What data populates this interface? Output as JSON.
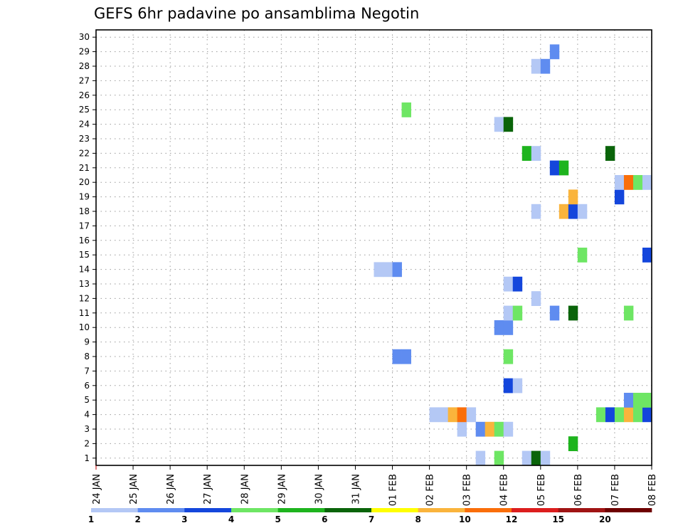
{
  "chart_data": {
    "type": "heatmap",
    "title": "GEFS 6hr padavine po ansamblima Negotin",
    "x_ticks": [
      "24 JAN",
      "25 JAN",
      "26 JAN",
      "27 JAN",
      "28 JAN",
      "29 JAN",
      "30 JAN",
      "31 JAN",
      "01 FEB",
      "02 FEB",
      "03 FEB",
      "04 FEB",
      "05 FEB",
      "06 FEB",
      "07 FEB",
      "08 FEB"
    ],
    "y_ticks": [
      "1",
      "2",
      "3",
      "4",
      "5",
      "6",
      "7",
      "8",
      "9",
      "10",
      "11",
      "12",
      "13",
      "14",
      "15",
      "16",
      "17",
      "18",
      "19",
      "20",
      "21",
      "22",
      "23",
      "24",
      "25",
      "26",
      "27",
      "28",
      "29",
      "30"
    ],
    "y_range": [
      1,
      30
    ],
    "grid": true,
    "legend": {
      "placement": "bottom",
      "colors": [
        "#b4c8f5",
        "#5f8cf0",
        "#1446dc",
        "#6ee664",
        "#1eb41e",
        "#0a640a",
        "#ffff00",
        "#fab43c",
        "#fa6e0a",
        "#dc1e1e",
        "#a01414",
        "#6e0000"
      ],
      "labels": [
        "1",
        "2",
        "3",
        "4",
        "5",
        "6",
        "7",
        "8",
        "10",
        "12",
        "15",
        "20"
      ]
    },
    "cells": [
      {
        "m": 1,
        "t": "03 FEB 06",
        "c": "#b4c8f5"
      },
      {
        "m": 1,
        "t": "03 FEB 18",
        "c": "#6ee664"
      },
      {
        "m": 1,
        "t": "04 FEB 12",
        "c": "#b4c8f5"
      },
      {
        "m": 1,
        "t": "04 FEB 18",
        "c": "#0a640a"
      },
      {
        "m": 1,
        "t": "05 FEB 00",
        "c": "#b4c8f5"
      },
      {
        "m": 2,
        "t": "05 FEB 18",
        "c": "#1eb41e"
      },
      {
        "m": 3,
        "t": "02 FEB 18",
        "c": "#b4c8f5"
      },
      {
        "m": 3,
        "t": "03 FEB 06",
        "c": "#5f8cf0"
      },
      {
        "m": 3,
        "t": "03 FEB 12",
        "c": "#fab43c"
      },
      {
        "m": 3,
        "t": "03 FEB 18",
        "c": "#6ee664"
      },
      {
        "m": 3,
        "t": "04 FEB 00",
        "c": "#b4c8f5"
      },
      {
        "m": 4,
        "t": "02 FEB 00",
        "c": "#b4c8f5"
      },
      {
        "m": 4,
        "t": "02 FEB 06",
        "c": "#b4c8f5"
      },
      {
        "m": 4,
        "t": "02 FEB 12",
        "c": "#fab43c"
      },
      {
        "m": 4,
        "t": "02 FEB 18",
        "c": "#fa6e0a"
      },
      {
        "m": 4,
        "t": "03 FEB 00",
        "c": "#b4c8f5"
      },
      {
        "m": 4,
        "t": "06 FEB 12",
        "c": "#6ee664"
      },
      {
        "m": 4,
        "t": "06 FEB 18",
        "c": "#1446dc"
      },
      {
        "m": 4,
        "t": "07 FEB 00",
        "c": "#6ee664"
      },
      {
        "m": 4,
        "t": "07 FEB 06",
        "c": "#fab43c"
      },
      {
        "m": 4,
        "t": "07 FEB 12",
        "c": "#6ee664"
      },
      {
        "m": 4,
        "t": "07 FEB 18",
        "c": "#1446dc"
      },
      {
        "m": 5,
        "t": "07 FEB 06",
        "c": "#5f8cf0"
      },
      {
        "m": 5,
        "t": "07 FEB 12",
        "c": "#6ee664"
      },
      {
        "m": 5,
        "t": "07 FEB 18",
        "c": "#6ee664"
      },
      {
        "m": 6,
        "t": "04 FEB 00",
        "c": "#1446dc"
      },
      {
        "m": 6,
        "t": "04 FEB 06",
        "c": "#b4c8f5"
      },
      {
        "m": 8,
        "t": "01 FEB 00",
        "c": "#5f8cf0"
      },
      {
        "m": 8,
        "t": "01 FEB 06",
        "c": "#5f8cf0"
      },
      {
        "m": 8,
        "t": "04 FEB 00",
        "c": "#6ee664"
      },
      {
        "m": 10,
        "t": "03 FEB 18",
        "c": "#5f8cf0"
      },
      {
        "m": 10,
        "t": "04 FEB 00",
        "c": "#5f8cf0"
      },
      {
        "m": 11,
        "t": "04 FEB 00",
        "c": "#b4c8f5"
      },
      {
        "m": 11,
        "t": "04 FEB 06",
        "c": "#6ee664"
      },
      {
        "m": 11,
        "t": "05 FEB 06",
        "c": "#5f8cf0"
      },
      {
        "m": 11,
        "t": "05 FEB 18",
        "c": "#0a640a"
      },
      {
        "m": 11,
        "t": "07 FEB 06",
        "c": "#6ee664"
      },
      {
        "m": 12,
        "t": "04 FEB 18",
        "c": "#b4c8f5"
      },
      {
        "m": 13,
        "t": "04 FEB 00",
        "c": "#b4c8f5"
      },
      {
        "m": 13,
        "t": "04 FEB 06",
        "c": "#1446dc"
      },
      {
        "m": 14,
        "t": "31 JAN 12",
        "c": "#b4c8f5"
      },
      {
        "m": 14,
        "t": "31 JAN 18",
        "c": "#b4c8f5"
      },
      {
        "m": 14,
        "t": "01 FEB 00",
        "c": "#5f8cf0"
      },
      {
        "m": 15,
        "t": "06 FEB 00",
        "c": "#6ee664"
      },
      {
        "m": 15,
        "t": "07 FEB 18",
        "c": "#1446dc"
      },
      {
        "m": 18,
        "t": "04 FEB 18",
        "c": "#b4c8f5"
      },
      {
        "m": 18,
        "t": "05 FEB 12",
        "c": "#fab43c"
      },
      {
        "m": 18,
        "t": "05 FEB 18",
        "c": "#1446dc"
      },
      {
        "m": 18,
        "t": "06 FEB 00",
        "c": "#b4c8f5"
      },
      {
        "m": 19,
        "t": "05 FEB 18",
        "c": "#fab43c"
      },
      {
        "m": 19,
        "t": "07 FEB 00",
        "c": "#1446dc"
      },
      {
        "m": 20,
        "t": "07 FEB 00",
        "c": "#b4c8f5"
      },
      {
        "m": 20,
        "t": "07 FEB 06",
        "c": "#fa6e0a"
      },
      {
        "m": 20,
        "t": "07 FEB 12",
        "c": "#6ee664"
      },
      {
        "m": 20,
        "t": "07 FEB 18",
        "c": "#b4c8f5"
      },
      {
        "m": 21,
        "t": "05 FEB 06",
        "c": "#1446dc"
      },
      {
        "m": 21,
        "t": "05 FEB 12",
        "c": "#1eb41e"
      },
      {
        "m": 22,
        "t": "04 FEB 12",
        "c": "#1eb41e"
      },
      {
        "m": 22,
        "t": "04 FEB 18",
        "c": "#b4c8f5"
      },
      {
        "m": 22,
        "t": "06 FEB 18",
        "c": "#0a640a"
      },
      {
        "m": 24,
        "t": "03 FEB 18",
        "c": "#b4c8f5"
      },
      {
        "m": 24,
        "t": "04 FEB 00",
        "c": "#0a640a"
      },
      {
        "m": 25,
        "t": "01 FEB 06",
        "c": "#6ee664"
      },
      {
        "m": 28,
        "t": "04 FEB 18",
        "c": "#b4c8f5"
      },
      {
        "m": 28,
        "t": "05 FEB 00",
        "c": "#5f8cf0"
      },
      {
        "m": 29,
        "t": "05 FEB 06",
        "c": "#5f8cf0"
      }
    ]
  }
}
